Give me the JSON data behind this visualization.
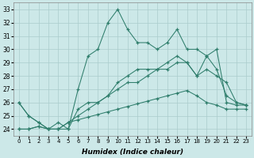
{
  "xlabel": "Humidex (Indice chaleur)",
  "x_all": [
    0,
    1,
    2,
    3,
    4,
    5,
    6,
    7,
    8,
    9,
    10,
    11,
    12,
    13,
    14,
    15,
    16,
    17,
    18,
    19,
    20,
    21,
    22,
    23
  ],
  "line1": [
    26,
    25,
    24.5,
    24,
    24,
    24,
    27,
    29.5,
    30,
    32,
    33,
    31.5,
    30.5,
    30.5,
    30,
    30.5,
    31.5,
    30,
    30,
    29.5,
    30,
    26,
    25.8,
    25.8
  ],
  "line2": [
    26,
    25,
    24.5,
    24,
    24.5,
    24,
    25.5,
    26,
    26,
    26.5,
    27.5,
    28,
    28.5,
    28.5,
    28.5,
    29,
    29.5,
    29,
    28,
    29.5,
    28.5,
    26.5,
    26,
    25.8
  ],
  "line3": [
    24,
    24,
    24.2,
    24,
    24,
    24.5,
    25,
    25.5,
    26,
    26.5,
    27,
    27.5,
    27.5,
    28,
    28.5,
    28.5,
    29,
    29,
    28,
    28.5,
    28,
    27.5,
    26,
    25.8
  ],
  "line4": [
    24,
    24,
    24.2,
    24,
    24,
    24.5,
    24.7,
    24.9,
    25.1,
    25.3,
    25.5,
    25.7,
    25.9,
    26.1,
    26.3,
    26.5,
    26.7,
    26.9,
    26.5,
    26,
    25.8,
    25.5,
    25.5,
    25.5
  ],
  "xlim": [
    -0.5,
    23.5
  ],
  "ylim": [
    23.5,
    33.5
  ],
  "yticks": [
    24,
    25,
    26,
    27,
    28,
    29,
    30,
    31,
    32,
    33
  ],
  "xticks": [
    0,
    1,
    2,
    3,
    4,
    5,
    6,
    7,
    8,
    9,
    10,
    11,
    12,
    13,
    14,
    15,
    16,
    17,
    18,
    19,
    20,
    21,
    22,
    23
  ],
  "line_color": "#2e7d6b",
  "bg_color": "#cce8e8",
  "grid_color": "#aacccc"
}
